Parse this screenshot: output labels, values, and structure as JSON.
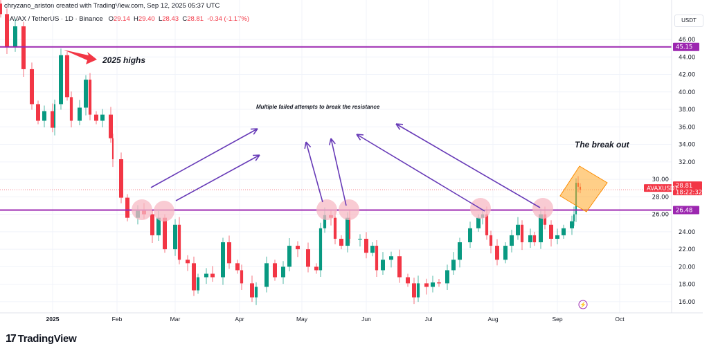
{
  "header": {
    "attribution": "chryzano_ariston created with TradingView.com, Sep 12, 2025 05:37 UTC",
    "symbol": "AVAX / TetherUS · 1D · Binance",
    "open_label": "O",
    "open": "29.14",
    "high_label": "H",
    "high": "29.40",
    "low_label": "L",
    "low": "28.43",
    "close_label": "C",
    "close": "28.81",
    "change": "-0.34 (-1.17%)"
  },
  "price_axis": {
    "unit": "USDT"
  },
  "badges": {
    "resistance_top": "45.15",
    "resistance_mid": "26.48",
    "ticker": "AVAXUSDT",
    "last_price": "28.81",
    "countdown": "18:22:32"
  },
  "annotations": {
    "highs": "2025 highs",
    "failed": "Multiple failed attempts to break the resistance",
    "breakout": "The break out"
  },
  "footer": {
    "brand": "TradingView"
  },
  "colors": {
    "up": "#089981",
    "down": "#f23645",
    "level": "#9c27b0",
    "arrow": "#673ab7",
    "circle": "#f7b9c4",
    "box": "#ffa726"
  },
  "chart_data": {
    "type": "candlestick",
    "symbol": "AVAXUSDT",
    "interval": "1D",
    "ylim": [
      15,
      49
    ],
    "y_ticks": [
      "16.00",
      "18.00",
      "20.00",
      "22.00",
      "24.00",
      "26.00",
      "28.00",
      "30.00",
      "32.00",
      "34.00",
      "36.00",
      "38.00",
      "40.00",
      "42.00",
      "44.00",
      "46.00"
    ],
    "x_ticks": [
      {
        "label": "2025",
        "date": "2025-01-01"
      },
      {
        "label": "Feb",
        "date": "2025-02-01"
      },
      {
        "label": "Mar",
        "date": "2025-03-01"
      },
      {
        "label": "Apr",
        "date": "2025-04-01"
      },
      {
        "label": "May",
        "date": "2025-05-01"
      },
      {
        "label": "Jun",
        "date": "2025-06-01"
      },
      {
        "label": "Jul",
        "date": "2025-07-01"
      },
      {
        "label": "Aug",
        "date": "2025-08-01"
      },
      {
        "label": "Sep",
        "date": "2025-09-01"
      },
      {
        "label": "Oct",
        "date": "2025-10-01"
      }
    ],
    "horizontal_levels": [
      45.15,
      26.48
    ],
    "last_price": 28.81,
    "closes": [
      [
        "2024-12-07",
        48.9
      ],
      [
        "2024-12-10",
        45.1
      ],
      [
        "2024-12-14",
        47.5
      ],
      [
        "2024-12-18",
        42.6
      ],
      [
        "2024-12-22",
        38.6
      ],
      [
        "2024-12-25",
        36.7
      ],
      [
        "2024-12-28",
        37.8
      ],
      [
        "2025-01-01",
        35.9
      ],
      [
        "2025-01-02",
        38.6
      ],
      [
        "2025-01-05",
        44.2
      ],
      [
        "2025-01-08",
        39.4
      ],
      [
        "2025-01-10",
        36.7
      ],
      [
        "2025-01-14",
        38.2
      ],
      [
        "2025-01-17",
        41.4
      ],
      [
        "2025-01-19",
        37.4
      ],
      [
        "2025-01-22",
        36.7
      ],
      [
        "2025-01-25",
        37.4
      ],
      [
        "2025-01-29",
        34.7
      ],
      [
        "2025-01-30",
        32.3
      ],
      [
        "2025-02-03",
        27.9
      ],
      [
        "2025-02-06",
        25.6
      ],
      [
        "2025-02-11",
        26.4
      ],
      [
        "2025-02-14",
        26.0
      ],
      [
        "2025-02-18",
        23.6
      ],
      [
        "2025-02-21",
        25.6
      ],
      [
        "2025-02-24",
        22.0
      ],
      [
        "2025-03-01",
        24.8
      ],
      [
        "2025-03-03",
        20.8
      ],
      [
        "2025-03-07",
        20.4
      ],
      [
        "2025-03-10",
        17.3
      ],
      [
        "2025-03-12",
        18.8
      ],
      [
        "2025-03-16",
        19.2
      ],
      [
        "2025-03-19",
        18.8
      ],
      [
        "2025-03-24",
        22.8
      ],
      [
        "2025-03-27",
        20.4
      ],
      [
        "2025-03-31",
        19.6
      ],
      [
        "2025-04-02",
        18.1
      ],
      [
        "2025-04-07",
        16.5
      ],
      [
        "2025-04-09",
        17.7
      ],
      [
        "2025-04-14",
        20.4
      ],
      [
        "2025-04-18",
        18.8
      ],
      [
        "2025-04-22",
        20.0
      ],
      [
        "2025-04-25",
        22.4
      ],
      [
        "2025-04-29",
        22.0
      ],
      [
        "2025-05-04",
        20.0
      ],
      [
        "2025-05-08",
        19.6
      ],
      [
        "2025-05-10",
        24.4
      ],
      [
        "2025-05-12",
        25.9
      ],
      [
        "2025-05-15",
        25.6
      ],
      [
        "2025-05-17",
        23.2
      ],
      [
        "2025-05-20",
        22.4
      ],
      [
        "2025-05-23",
        25.6
      ],
      [
        "2025-05-24",
        23.2
      ],
      [
        "2025-05-29",
        23.2
      ],
      [
        "2025-06-01",
        21.6
      ],
      [
        "2025-06-04",
        22.4
      ],
      [
        "2025-06-06",
        19.6
      ],
      [
        "2025-06-09",
        20.8
      ],
      [
        "2025-06-13",
        21.2
      ],
      [
        "2025-06-17",
        18.8
      ],
      [
        "2025-06-21",
        18.1
      ],
      [
        "2025-06-24",
        16.5
      ],
      [
        "2025-06-26",
        18.1
      ],
      [
        "2025-06-30",
        17.7
      ],
      [
        "2025-07-03",
        18.2
      ],
      [
        "2025-07-06",
        18.1
      ],
      [
        "2025-07-10",
        19.6
      ],
      [
        "2025-07-13",
        20.8
      ],
      [
        "2025-07-16",
        22.8
      ],
      [
        "2025-07-21",
        24.4
      ],
      [
        "2025-07-25",
        25.6
      ],
      [
        "2025-07-27",
        26.0
      ],
      [
        "2025-07-29",
        23.6
      ],
      [
        "2025-07-31",
        22.4
      ],
      [
        "2025-08-03",
        20.8
      ],
      [
        "2025-08-07",
        22.4
      ],
      [
        "2025-08-10",
        23.6
      ],
      [
        "2025-08-13",
        24.8
      ],
      [
        "2025-08-15",
        22.8
      ],
      [
        "2025-08-19",
        23.6
      ],
      [
        "2025-08-21",
        22.8
      ],
      [
        "2025-08-24",
        26.0
      ],
      [
        "2025-08-26",
        24.8
      ],
      [
        "2025-08-29",
        23.2
      ],
      [
        "2025-09-01",
        23.6
      ],
      [
        "2025-09-04",
        24.4
      ],
      [
        "2025-09-08",
        25.2
      ],
      [
        "2025-09-09",
        26.0
      ],
      [
        "2025-09-10",
        29.6
      ],
      [
        "2025-09-11",
        29.15
      ],
      [
        "2025-09-12",
        28.81
      ]
    ]
  }
}
